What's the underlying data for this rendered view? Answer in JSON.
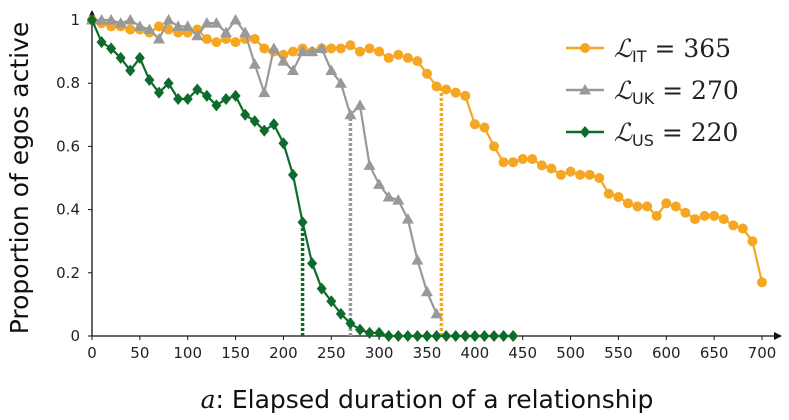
{
  "chart_data": {
    "type": "line",
    "xlabel_var": "a",
    "xlabel": ": Elapsed duration of a relationship",
    "ylabel": "Proportion of egos active",
    "xlim": [
      0,
      700
    ],
    "ylim": [
      0,
      1
    ],
    "xticks": [
      0,
      50,
      100,
      150,
      200,
      250,
      300,
      350,
      400,
      450,
      500,
      550,
      600,
      650,
      700
    ],
    "yticks": [
      0,
      0.2,
      0.4,
      0.6,
      0.8,
      1
    ],
    "grid": false,
    "legend_position": "top-right",
    "series": [
      {
        "name": "L_IT = 365",
        "legend_script": "ℒ",
        "legend_sub": "IT",
        "legend_rest": " = 365",
        "color": "#f5a623",
        "marker": "circle",
        "threshold": 365,
        "points": [
          [
            0,
            1.0
          ],
          [
            10,
            0.99
          ],
          [
            20,
            0.98
          ],
          [
            30,
            0.98
          ],
          [
            40,
            0.97
          ],
          [
            50,
            0.97
          ],
          [
            60,
            0.96
          ],
          [
            70,
            0.98
          ],
          [
            80,
            0.97
          ],
          [
            90,
            0.96
          ],
          [
            100,
            0.96
          ],
          [
            110,
            0.97
          ],
          [
            120,
            0.94
          ],
          [
            130,
            0.93
          ],
          [
            140,
            0.94
          ],
          [
            150,
            0.93
          ],
          [
            160,
            0.94
          ],
          [
            170,
            0.94
          ],
          [
            180,
            0.91
          ],
          [
            190,
            0.9
          ],
          [
            200,
            0.89
          ],
          [
            210,
            0.9
          ],
          [
            220,
            0.91
          ],
          [
            230,
            0.9
          ],
          [
            240,
            0.91
          ],
          [
            250,
            0.91
          ],
          [
            260,
            0.91
          ],
          [
            270,
            0.92
          ],
          [
            280,
            0.9
          ],
          [
            290,
            0.91
          ],
          [
            300,
            0.9
          ],
          [
            310,
            0.88
          ],
          [
            320,
            0.89
          ],
          [
            330,
            0.88
          ],
          [
            340,
            0.87
          ],
          [
            350,
            0.83
          ],
          [
            360,
            0.79
          ],
          [
            370,
            0.78
          ],
          [
            380,
            0.77
          ],
          [
            390,
            0.76
          ],
          [
            400,
            0.67
          ],
          [
            410,
            0.66
          ],
          [
            420,
            0.6
          ],
          [
            430,
            0.55
          ],
          [
            440,
            0.55
          ],
          [
            450,
            0.56
          ],
          [
            460,
            0.56
          ],
          [
            470,
            0.54
          ],
          [
            480,
            0.53
          ],
          [
            490,
            0.51
          ],
          [
            500,
            0.52
          ],
          [
            510,
            0.51
          ],
          [
            520,
            0.51
          ],
          [
            530,
            0.5
          ],
          [
            540,
            0.45
          ],
          [
            550,
            0.44
          ],
          [
            560,
            0.42
          ],
          [
            570,
            0.41
          ],
          [
            580,
            0.41
          ],
          [
            590,
            0.38
          ],
          [
            600,
            0.42
          ],
          [
            610,
            0.41
          ],
          [
            620,
            0.39
          ],
          [
            630,
            0.37
          ],
          [
            640,
            0.38
          ],
          [
            650,
            0.38
          ],
          [
            660,
            0.37
          ],
          [
            670,
            0.35
          ],
          [
            680,
            0.34
          ],
          [
            690,
            0.3
          ],
          [
            700,
            0.17
          ]
        ]
      },
      {
        "name": "L_UK = 270",
        "legend_script": "ℒ",
        "legend_sub": "UK",
        "legend_rest": " = 270",
        "color": "#999999",
        "marker": "triangle",
        "threshold": 270,
        "points": [
          [
            0,
            1.0
          ],
          [
            10,
            1.0
          ],
          [
            20,
            1.0
          ],
          [
            30,
            0.99
          ],
          [
            40,
            1.0
          ],
          [
            50,
            0.98
          ],
          [
            60,
            0.97
          ],
          [
            70,
            0.94
          ],
          [
            80,
            1.0
          ],
          [
            90,
            0.98
          ],
          [
            100,
            0.98
          ],
          [
            110,
            0.95
          ],
          [
            120,
            0.99
          ],
          [
            130,
            0.99
          ],
          [
            140,
            0.96
          ],
          [
            150,
            1.0
          ],
          [
            160,
            0.96
          ],
          [
            170,
            0.86
          ],
          [
            180,
            0.77
          ],
          [
            190,
            0.91
          ],
          [
            200,
            0.87
          ],
          [
            210,
            0.84
          ],
          [
            220,
            0.9
          ],
          [
            230,
            0.9
          ],
          [
            240,
            0.91
          ],
          [
            250,
            0.84
          ],
          [
            260,
            0.8
          ],
          [
            270,
            0.7
          ],
          [
            280,
            0.73
          ],
          [
            290,
            0.54
          ],
          [
            300,
            0.48
          ],
          [
            310,
            0.44
          ],
          [
            320,
            0.43
          ],
          [
            330,
            0.37
          ],
          [
            340,
            0.24
          ],
          [
            350,
            0.14
          ],
          [
            360,
            0.07
          ]
        ]
      },
      {
        "name": "L_US = 220",
        "legend_script": "ℒ",
        "legend_sub": "US",
        "legend_rest": " = 220",
        "color": "#0d6b2c",
        "marker": "diamond",
        "threshold": 220,
        "points": [
          [
            0,
            1.0
          ],
          [
            10,
            0.93
          ],
          [
            20,
            0.91
          ],
          [
            30,
            0.88
          ],
          [
            40,
            0.84
          ],
          [
            50,
            0.88
          ],
          [
            60,
            0.81
          ],
          [
            70,
            0.77
          ],
          [
            80,
            0.8
          ],
          [
            90,
            0.75
          ],
          [
            100,
            0.75
          ],
          [
            110,
            0.78
          ],
          [
            120,
            0.76
          ],
          [
            130,
            0.73
          ],
          [
            140,
            0.75
          ],
          [
            150,
            0.76
          ],
          [
            160,
            0.7
          ],
          [
            170,
            0.68
          ],
          [
            180,
            0.65
          ],
          [
            190,
            0.67
          ],
          [
            200,
            0.61
          ],
          [
            210,
            0.51
          ],
          [
            220,
            0.36
          ],
          [
            230,
            0.23
          ],
          [
            240,
            0.15
          ],
          [
            250,
            0.11
          ],
          [
            260,
            0.07
          ],
          [
            270,
            0.04
          ],
          [
            280,
            0.02
          ],
          [
            290,
            0.01
          ],
          [
            300,
            0.01
          ],
          [
            310,
            0.0
          ],
          [
            320,
            0.0
          ],
          [
            330,
            0.0
          ],
          [
            340,
            0.0
          ],
          [
            350,
            0.0
          ],
          [
            360,
            0.0
          ],
          [
            370,
            0.0
          ],
          [
            380,
            0.0
          ],
          [
            390,
            0.0
          ],
          [
            400,
            0.0
          ],
          [
            410,
            0.0
          ],
          [
            420,
            0.0
          ],
          [
            430,
            0.0
          ],
          [
            440,
            0.0
          ]
        ]
      }
    ]
  }
}
